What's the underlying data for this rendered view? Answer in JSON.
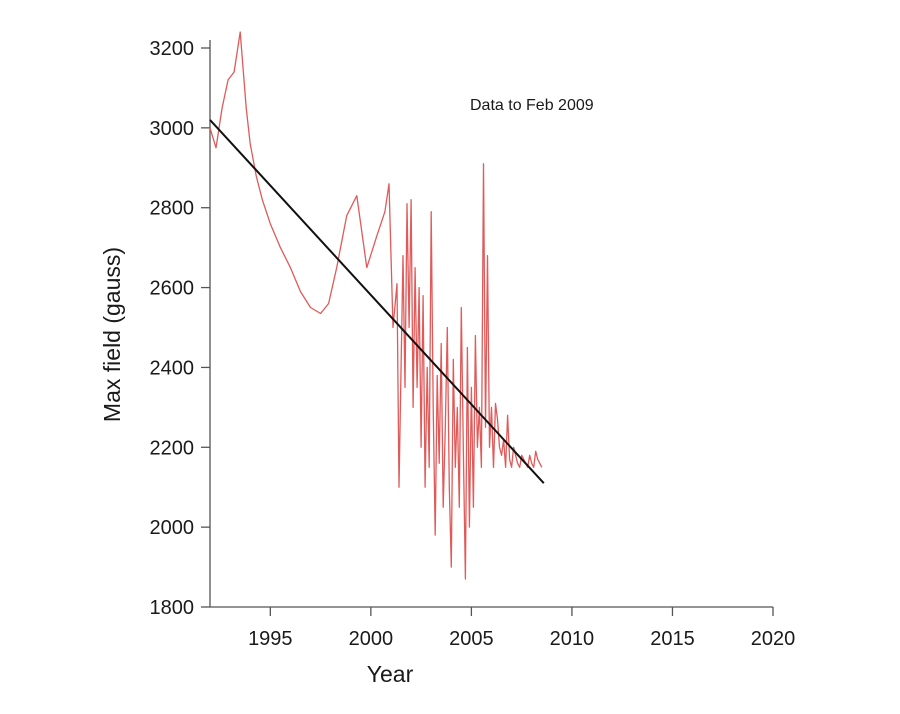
{
  "chart_data": {
    "type": "line",
    "xlabel": "Year",
    "ylabel": "Max field (gauss)",
    "annotation": "Data to Feb 2009",
    "xlim": [
      1992,
      2020
    ],
    "ylim": [
      1800,
      3200
    ],
    "xticks": [
      1995,
      2000,
      2005,
      2010,
      2015,
      2020
    ],
    "yticks": [
      1800,
      2000,
      2200,
      2400,
      2600,
      2800,
      3000,
      3200
    ],
    "grid": false,
    "series": [
      {
        "style": "line",
        "color": "#e05a5a",
        "x": [
          1992.0,
          1992.3,
          1992.6,
          1992.9,
          1993.2,
          1993.5,
          1993.8,
          1994.0,
          1994.3,
          1994.6,
          1995.0,
          1995.5,
          1996.0,
          1996.5,
          1997.0,
          1997.5,
          1997.9,
          1998.3,
          1998.8,
          1999.3,
          1999.8,
          2000.3,
          2000.7,
          2000.9,
          2001.1,
          2001.3,
          2001.4,
          2001.6,
          2001.7,
          2001.8,
          2001.9,
          2002.0,
          2002.1,
          2002.2,
          2002.3,
          2002.4,
          2002.5,
          2002.6,
          2002.7,
          2002.8,
          2002.9,
          2003.0,
          2003.1,
          2003.2,
          2003.3,
          2003.4,
          2003.5,
          2003.6,
          2003.7,
          2003.8,
          2003.9,
          2004.0,
          2004.1,
          2004.2,
          2004.3,
          2004.4,
          2004.5,
          2004.6,
          2004.7,
          2004.8,
          2004.9,
          2005.0,
          2005.1,
          2005.2,
          2005.3,
          2005.4,
          2005.5,
          2005.6,
          2005.7,
          2005.8,
          2005.9,
          2006.0,
          2006.1,
          2006.2,
          2006.3,
          2006.4,
          2006.5,
          2006.6,
          2006.7,
          2006.8,
          2006.9,
          2007.0,
          2007.1,
          2007.2,
          2007.3,
          2007.4,
          2007.5,
          2007.6,
          2007.7,
          2007.8,
          2007.9,
          2008.0,
          2008.1,
          2008.2,
          2008.3,
          2008.4,
          2008.5
        ],
        "y": [
          3000,
          2950,
          3050,
          3120,
          3140,
          3240,
          3050,
          2960,
          2880,
          2820,
          2760,
          2700,
          2650,
          2590,
          2550,
          2535,
          2560,
          2650,
          2780,
          2830,
          2650,
          2730,
          2790,
          2860,
          2500,
          2610,
          2100,
          2680,
          2350,
          2810,
          2500,
          2820,
          2300,
          2650,
          2350,
          2600,
          2200,
          2580,
          2100,
          2400,
          2150,
          2790,
          2300,
          1980,
          2380,
          2160,
          2460,
          2050,
          2250,
          2500,
          2100,
          1900,
          2420,
          2150,
          2300,
          2050,
          2550,
          2200,
          1870,
          2450,
          2000,
          2350,
          2050,
          2480,
          2200,
          2300,
          2150,
          2910,
          2250,
          2680,
          2200,
          2300,
          2150,
          2310,
          2270,
          2200,
          2180,
          2220,
          2150,
          2280,
          2170,
          2150,
          2200,
          2180,
          2160,
          2150,
          2180,
          2170,
          2160,
          2150,
          2180,
          2160,
          2150,
          2190,
          2170,
          2160,
          2150
        ]
      },
      {
        "style": "trend",
        "color": "#111111",
        "x": [
          1992.0,
          2008.6
        ],
        "y": [
          3020,
          2110
        ]
      }
    ]
  }
}
